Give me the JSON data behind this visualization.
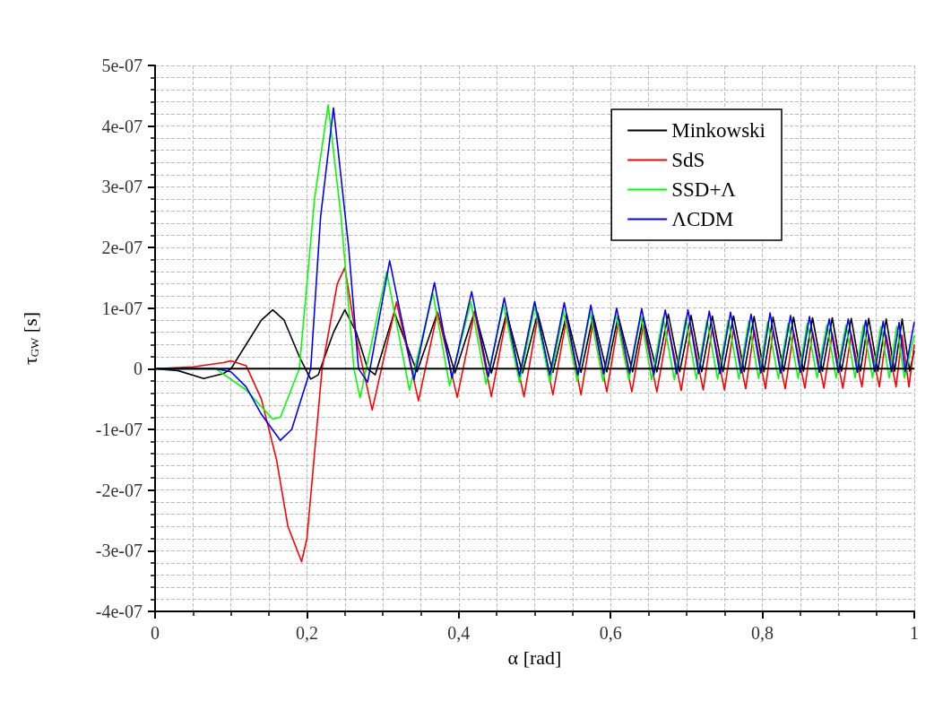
{
  "chart_data": {
    "type": "line",
    "xlabel": "α [rad]",
    "ylabel": "τ$_{GW}$ [s]",
    "xlim": [
      0,
      1
    ],
    "xticks": [
      0,
      {
        "value": 0.2,
        "label": "0,2"
      },
      {
        "value": 0.4,
        "label": "0,4"
      },
      {
        "value": 0.6,
        "label": "0,6"
      },
      {
        "value": 0.8,
        "label": "0,8"
      },
      1
    ],
    "ylim": [
      -4e-07,
      5e-07
    ],
    "yticks": [
      {
        "value": -4e-07,
        "label": "-4e-07"
      },
      {
        "value": -3e-07,
        "label": "-3e-07"
      },
      {
        "value": -2e-07,
        "label": "-2e-07"
      },
      {
        "value": -1e-07,
        "label": "-1e-07"
      },
      0,
      {
        "value": 1e-07,
        "label": "1e-07"
      },
      {
        "value": 2e-07,
        "label": "2e-07"
      },
      {
        "value": 3e-07,
        "label": "3e-07"
      },
      {
        "value": 4e-07,
        "label": "4e-07"
      },
      {
        "value": 5e-07,
        "label": "5e-07"
      }
    ],
    "grid": true,
    "legend": "top right",
    "marker": "none",
    "line_style": "solid",
    "ref_lines": [
      {
        "axis": "y",
        "value": 0,
        "color": "#000000"
      }
    ],
    "series": [
      {
        "name": "Minkowski",
        "color": "#000000",
        "x": [
          0,
          0.03,
          0.064,
          0.09,
          0.1,
          0.12,
          0.14,
          0.155,
          0.17,
          0.19,
          0.205,
          0.215,
          0.235,
          0.25,
          0.265,
          0.28,
          0.29,
          0.315,
          0.345,
          0.372,
          0.395,
          0.421,
          0.443,
          0.463,
          0.484,
          0.504,
          0.524,
          0.542,
          0.561,
          0.577,
          0.595,
          0.61,
          0.629,
          0.643,
          0.661,
          0.676,
          0.691,
          0.706,
          0.72,
          0.734,
          0.748,
          0.762,
          0.776,
          0.789,
          0.802,
          0.814,
          0.828,
          0.841,
          0.854,
          0.866,
          0.879,
          0.892,
          0.904,
          0.917,
          0.929,
          0.94,
          0.952,
          0.963,
          0.974,
          0.984,
          0.994,
          1
        ],
        "values": [
          0,
          -3e-09,
          -1.6e-08,
          -8e-09,
          0,
          4e-08,
          8e-08,
          9.7e-08,
          8e-08,
          2e-08,
          -1.7e-08,
          -1e-08,
          6e-08,
          9.7e-08,
          6e-08,
          0,
          -1e-08,
          9.3e-08,
          -5e-09,
          9.3e-08,
          -7e-09,
          9.5e-08,
          -7e-09,
          9.2e-08,
          -7e-09,
          9.2e-08,
          -6e-09,
          9e-08,
          -6e-09,
          8.8e-08,
          -5e-09,
          8.7e-08,
          -5e-09,
          8.5e-08,
          -5e-09,
          9e-08,
          -5e-09,
          8.8e-08,
          -5e-09,
          8.7e-08,
          -5e-09,
          8.7e-08,
          -5e-09,
          8.6e-08,
          -5e-09,
          8.5e-08,
          -4e-09,
          8.5e-08,
          -4e-09,
          8.4e-08,
          -4e-09,
          8.4e-08,
          -4e-09,
          8.3e-08,
          -4e-09,
          8.3e-08,
          -4e-09,
          8.2e-08,
          -4e-09,
          8.2e-08,
          -4e-09,
          3e-08
        ]
      },
      {
        "name": "SdS",
        "color": "#ff0000",
        "x": [
          0,
          0.05,
          0.09,
          0.1,
          0.12,
          0.14,
          0.16,
          0.175,
          0.193,
          0.2,
          0.22,
          0.24,
          0.25,
          0.265,
          0.286,
          0.318,
          0.347,
          0.372,
          0.398,
          0.421,
          0.443,
          0.463,
          0.486,
          0.504,
          0.524,
          0.542,
          0.561,
          0.577,
          0.595,
          0.61,
          0.628,
          0.643,
          0.661,
          0.676,
          0.693,
          0.706,
          0.722,
          0.734,
          0.75,
          0.762,
          0.778,
          0.789,
          0.804,
          0.814,
          0.83,
          0.841,
          0.856,
          0.866,
          0.881,
          0.892,
          0.906,
          0.917,
          0.931,
          0.94,
          0.954,
          0.963,
          0.976,
          0.984,
          0.993,
          1
        ],
        "values": [
          0,
          3e-09,
          1e-08,
          1.3e-08,
          5e-09,
          -5e-08,
          -1.5e-07,
          -2.6e-07,
          -3.18e-07,
          -2.8e-07,
          0,
          1.4e-07,
          1.67e-07,
          5e-08,
          -6.8e-08,
          1.1e-07,
          -5.3e-08,
          9.3e-08,
          -4.7e-08,
          9.3e-08,
          -4.6e-08,
          8.7e-08,
          -4.6e-08,
          8.5e-08,
          -4.3e-08,
          8.3e-08,
          -4.3e-08,
          7.8e-08,
          -3.8e-08,
          7.5e-08,
          -3.8e-08,
          7.2e-08,
          -3.8e-08,
          7e-08,
          -3.6e-08,
          6.8e-08,
          -3.5e-08,
          6.7e-08,
          -3.5e-08,
          6.5e-08,
          -3.3e-08,
          6.3e-08,
          -3.3e-08,
          6.2e-08,
          -3.3e-08,
          6e-08,
          -3.2e-08,
          6e-08,
          -3.2e-08,
          5.8e-08,
          -3.2e-08,
          5.7e-08,
          -3e-08,
          5.6e-08,
          -3e-08,
          5.5e-08,
          -3e-08,
          5.5e-08,
          -3e-08,
          4e-08
        ]
      },
      {
        "name": "SSD+Λ",
        "color": "#00ff00",
        "x": [
          0,
          0.08,
          0.12,
          0.155,
          0.165,
          0.19,
          0.21,
          0.228,
          0.245,
          0.262,
          0.27,
          0.305,
          0.335,
          0.366,
          0.388,
          0.416,
          0.436,
          0.459,
          0.48,
          0.5,
          0.52,
          0.538,
          0.556,
          0.573,
          0.59,
          0.607,
          0.624,
          0.64,
          0.654,
          0.669,
          0.684,
          0.699,
          0.713,
          0.727,
          0.741,
          0.755,
          0.769,
          0.782,
          0.795,
          0.807,
          0.821,
          0.834,
          0.847,
          0.859,
          0.872,
          0.885,
          0.897,
          0.91,
          0.922,
          0.933,
          0.945,
          0.956,
          0.967,
          0.977,
          0.987,
          1
        ],
        "values": [
          0,
          0,
          -3.5e-08,
          -8.3e-08,
          -8e-08,
          0,
          2.8e-07,
          4.35e-07,
          2.5e-07,
          0,
          -4.8e-08,
          1.6e-07,
          -3.5e-08,
          1.24e-07,
          -2.8e-08,
          1.1e-07,
          -2.5e-08,
          1.05e-07,
          -2.2e-08,
          1.03e-07,
          -2.2e-08,
          9.5e-08,
          -2e-08,
          9.3e-08,
          -2e-08,
          9e-08,
          -1.8e-08,
          8.7e-08,
          -1.8e-08,
          8.5e-08,
          -1.8e-08,
          8.3e-08,
          -1.7e-08,
          8e-08,
          -1.7e-08,
          8e-08,
          -1.7e-08,
          7.8e-08,
          -1.6e-08,
          7.8e-08,
          -1.6e-08,
          7.5e-08,
          -1.6e-08,
          7.5e-08,
          -1.5e-08,
          7.3e-08,
          -1.5e-08,
          7.2e-08,
          -1.5e-08,
          7.2e-08,
          -1.5e-08,
          7e-08,
          -1.5e-08,
          7e-08,
          -1.5e-08,
          5.5e-08
        ]
      },
      {
        "name": "ΛCDM",
        "color": "#0000ff",
        "x": [
          0,
          0.08,
          0.1,
          0.12,
          0.14,
          0.165,
          0.18,
          0.205,
          0.218,
          0.235,
          0.255,
          0.268,
          0.28,
          0.309,
          0.341,
          0.368,
          0.391,
          0.417,
          0.439,
          0.46,
          0.48,
          0.5,
          0.52,
          0.539,
          0.557,
          0.574,
          0.591,
          0.608,
          0.625,
          0.641,
          0.657,
          0.672,
          0.687,
          0.702,
          0.716,
          0.73,
          0.744,
          0.758,
          0.772,
          0.785,
          0.798,
          0.81,
          0.824,
          0.837,
          0.85,
          0.862,
          0.875,
          0.888,
          0.9,
          0.913,
          0.925,
          0.936,
          0.948,
          0.959,
          0.97,
          0.98,
          0.988,
          1
        ],
        "values": [
          0,
          0,
          -5e-09,
          -3e-08,
          -7.5e-08,
          -1.18e-07,
          -1e-07,
          0,
          2.5e-07,
          4.3e-07,
          2e-07,
          0,
          -2.2e-08,
          1.78e-07,
          -1.8e-08,
          1.42e-07,
          -1.5e-08,
          1.27e-07,
          -1.3e-08,
          1.17e-07,
          -1.2e-08,
          1.11e-07,
          -1e-08,
          1.09e-07,
          -1e-08,
          1.05e-07,
          -8e-09,
          1e-07,
          -7e-09,
          9.9e-08,
          -1e-08,
          9.7e-08,
          -8e-09,
          9.7e-08,
          -8e-09,
          9.5e-08,
          -8e-09,
          9.3e-08,
          -7e-09,
          9e-08,
          -7e-09,
          9.2e-08,
          -7e-09,
          8.8e-08,
          -6e-09,
          8.6e-08,
          -6e-09,
          8.2e-08,
          -6e-09,
          8.2e-08,
          -6e-09,
          8e-08,
          -5e-09,
          7.8e-08,
          -5e-09,
          7.6e-08,
          -5e-09,
          7.7e-08
        ]
      }
    ]
  }
}
